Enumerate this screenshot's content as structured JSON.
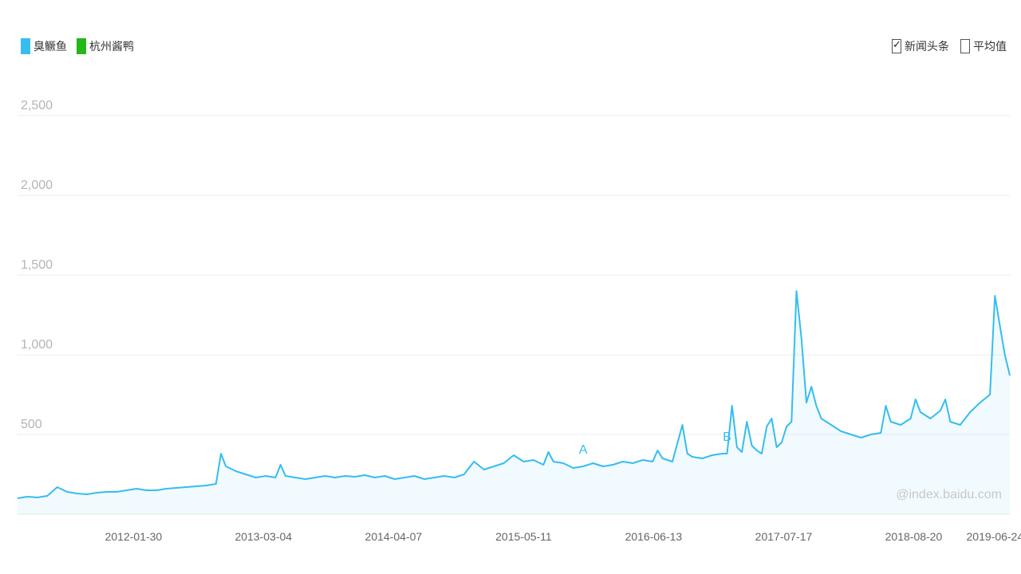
{
  "legend": {
    "items": [
      {
        "label": "臭鳜鱼",
        "color": "#35bdef"
      },
      {
        "label": "杭州酱鸭",
        "color": "#22b818"
      }
    ]
  },
  "options": {
    "news_label": "新闻头条",
    "news_checked": true,
    "avg_label": "平均值",
    "avg_checked": false
  },
  "watermark": "@index.baidu.com",
  "chart_data": {
    "type": "area",
    "ylim": [
      0,
      2500
    ],
    "y_ticks": [
      500,
      1000,
      1500,
      2000,
      2500
    ],
    "y_tick_labels": [
      "500",
      "1,000",
      "1,500",
      "2,000",
      "2,500"
    ],
    "x_tick_labels": [
      "2012-01-30",
      "2013-03-04",
      "2014-04-07",
      "2015-05-11",
      "2016-06-13",
      "2017-07-17",
      "2018-08-20",
      "2019-06-24"
    ],
    "x_tick_positions": [
      0.1169,
      0.2478,
      0.3789,
      0.51,
      0.641,
      0.7721,
      0.9031,
      0.985
    ],
    "grid": true,
    "series": [
      {
        "name": "臭鳜鱼",
        "color": "#35bdef",
        "points": [
          [
            0,
            100
          ],
          [
            0.01,
            110
          ],
          [
            0.02,
            105
          ],
          [
            0.03,
            115
          ],
          [
            0.04,
            170
          ],
          [
            0.05,
            140
          ],
          [
            0.06,
            130
          ],
          [
            0.07,
            125
          ],
          [
            0.08,
            135
          ],
          [
            0.09,
            140
          ],
          [
            0.1,
            140
          ],
          [
            0.11,
            150
          ],
          [
            0.12,
            160
          ],
          [
            0.13,
            150
          ],
          [
            0.14,
            150
          ],
          [
            0.15,
            160
          ],
          [
            0.16,
            165
          ],
          [
            0.17,
            170
          ],
          [
            0.18,
            175
          ],
          [
            0.19,
            180
          ],
          [
            0.2,
            190
          ],
          [
            0.205,
            380
          ],
          [
            0.21,
            300
          ],
          [
            0.22,
            270
          ],
          [
            0.23,
            250
          ],
          [
            0.24,
            230
          ],
          [
            0.25,
            240
          ],
          [
            0.26,
            230
          ],
          [
            0.265,
            310
          ],
          [
            0.27,
            240
          ],
          [
            0.28,
            230
          ],
          [
            0.29,
            220
          ],
          [
            0.3,
            230
          ],
          [
            0.31,
            240
          ],
          [
            0.32,
            230
          ],
          [
            0.33,
            240
          ],
          [
            0.34,
            235
          ],
          [
            0.35,
            245
          ],
          [
            0.36,
            230
          ],
          [
            0.37,
            240
          ],
          [
            0.38,
            220
          ],
          [
            0.39,
            230
          ],
          [
            0.4,
            240
          ],
          [
            0.41,
            220
          ],
          [
            0.42,
            230
          ],
          [
            0.43,
            240
          ],
          [
            0.44,
            230
          ],
          [
            0.45,
            250
          ],
          [
            0.46,
            330
          ],
          [
            0.47,
            280
          ],
          [
            0.48,
            300
          ],
          [
            0.49,
            320
          ],
          [
            0.5,
            370
          ],
          [
            0.51,
            330
          ],
          [
            0.52,
            340
          ],
          [
            0.53,
            310
          ],
          [
            0.535,
            390
          ],
          [
            0.54,
            330
          ],
          [
            0.55,
            320
          ],
          [
            0.56,
            290
          ],
          [
            0.57,
            300
          ],
          [
            0.58,
            320
          ],
          [
            0.59,
            300
          ],
          [
            0.6,
            310
          ],
          [
            0.61,
            330
          ],
          [
            0.62,
            320
          ],
          [
            0.63,
            340
          ],
          [
            0.64,
            330
          ],
          [
            0.645,
            400
          ],
          [
            0.65,
            350
          ],
          [
            0.66,
            330
          ],
          [
            0.67,
            560
          ],
          [
            0.675,
            380
          ],
          [
            0.68,
            360
          ],
          [
            0.69,
            350
          ],
          [
            0.7,
            370
          ],
          [
            0.71,
            380
          ],
          [
            0.715,
            380
          ],
          [
            0.72,
            680
          ],
          [
            0.725,
            420
          ],
          [
            0.73,
            390
          ],
          [
            0.735,
            580
          ],
          [
            0.74,
            430
          ],
          [
            0.745,
            400
          ],
          [
            0.75,
            380
          ],
          [
            0.755,
            550
          ],
          [
            0.76,
            600
          ],
          [
            0.765,
            420
          ],
          [
            0.77,
            450
          ],
          [
            0.775,
            550
          ],
          [
            0.78,
            580
          ],
          [
            0.785,
            1400
          ],
          [
            0.79,
            1100
          ],
          [
            0.795,
            700
          ],
          [
            0.8,
            800
          ],
          [
            0.805,
            680
          ],
          [
            0.81,
            600
          ],
          [
            0.82,
            560
          ],
          [
            0.83,
            520
          ],
          [
            0.84,
            500
          ],
          [
            0.85,
            480
          ],
          [
            0.86,
            500
          ],
          [
            0.87,
            510
          ],
          [
            0.875,
            680
          ],
          [
            0.88,
            580
          ],
          [
            0.89,
            560
          ],
          [
            0.9,
            600
          ],
          [
            0.905,
            720
          ],
          [
            0.91,
            640
          ],
          [
            0.92,
            600
          ],
          [
            0.93,
            650
          ],
          [
            0.935,
            720
          ],
          [
            0.94,
            580
          ],
          [
            0.95,
            560
          ],
          [
            0.96,
            640
          ],
          [
            0.97,
            700
          ],
          [
            0.98,
            750
          ],
          [
            0.985,
            1370
          ],
          [
            0.99,
            1180
          ],
          [
            0.995,
            1000
          ],
          [
            1,
            870
          ]
        ]
      }
    ]
  }
}
